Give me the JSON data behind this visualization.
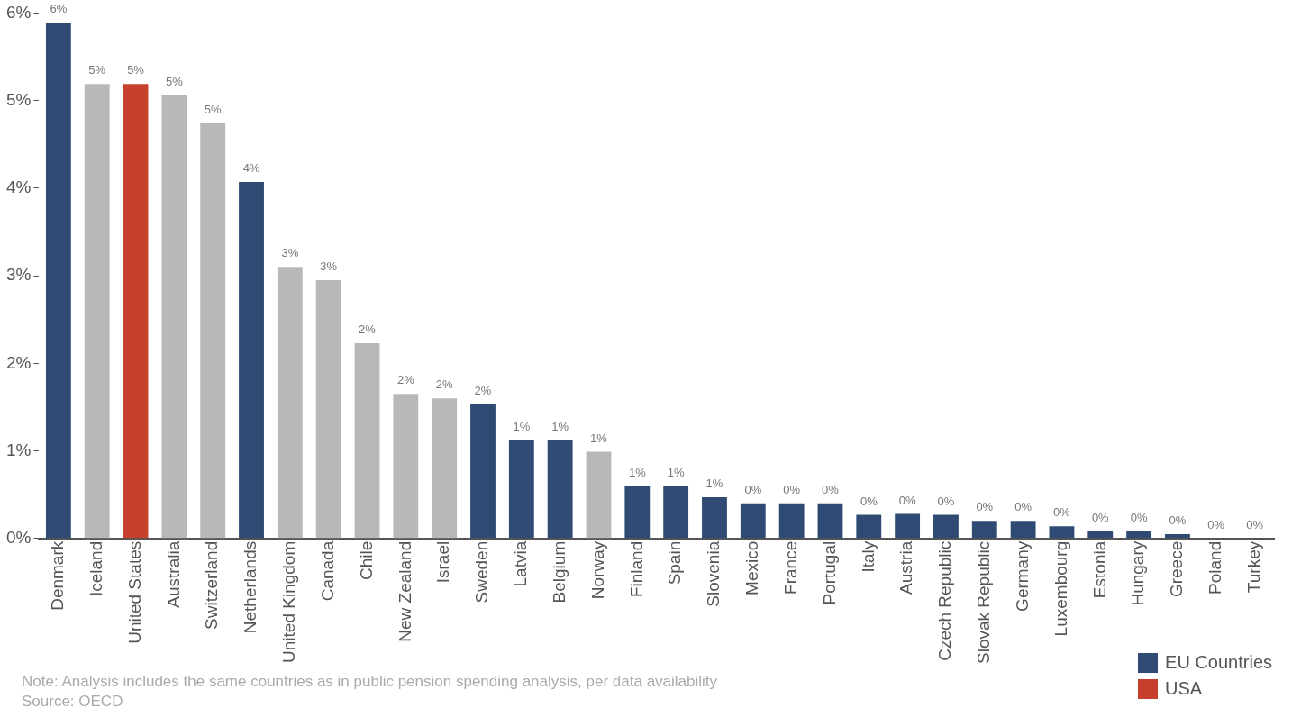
{
  "chart_data": {
    "type": "bar",
    "categories": [
      "Denmark",
      "Iceland",
      "United States",
      "Australia",
      "Switzerland",
      "Netherlands",
      "United Kingdom",
      "Canada",
      "Chile",
      "New Zealand",
      "Israel",
      "Sweden",
      "Latvia",
      "Belgium",
      "Norway",
      "Finland",
      "Spain",
      "Slovenia",
      "Mexico",
      "France",
      "Portugal",
      "Italy",
      "Austria",
      "Czech Republic",
      "Slovak Republic",
      "Germany",
      "Luxembourg",
      "Estonia",
      "Hungary",
      "Greece",
      "Poland",
      "Turkey"
    ],
    "series": [
      {
        "name": "EU Countries",
        "color": "#2f4a73",
        "values": [
          5.89,
          null,
          null,
          null,
          null,
          4.07,
          null,
          null,
          null,
          null,
          null,
          1.53,
          1.12,
          1.12,
          null,
          0.6,
          0.6,
          0.47,
          0.4,
          0.4,
          0.4,
          0.27,
          0.28,
          0.27,
          0.2,
          0.2,
          0.14,
          0.08,
          0.08,
          0.05,
          0,
          null
        ]
      },
      {
        "name": "USA",
        "color": "#c7402d",
        "values": [
          null,
          null,
          5.19,
          null,
          null,
          null,
          null,
          null,
          null,
          null,
          null,
          null,
          null,
          null,
          null,
          null,
          null,
          null,
          null,
          null,
          null,
          null,
          null,
          null,
          null,
          null,
          null,
          null,
          null,
          null,
          null,
          null
        ]
      },
      {
        "color": "#b8b8b8",
        "values": [
          null,
          5.19,
          null,
          5.06,
          4.74,
          null,
          3.1,
          2.95,
          2.23,
          1.65,
          1.6,
          null,
          null,
          null,
          0.99,
          null,
          null,
          null,
          null,
          null,
          null,
          null,
          null,
          null,
          null,
          null,
          null,
          null,
          null,
          null,
          null,
          0
        ]
      }
    ],
    "value_labels": [
      "6%",
      "5%",
      "5%",
      "5%",
      "5%",
      "4%",
      "3%",
      "3%",
      "2%",
      "2%",
      "2%",
      "2%",
      "1%",
      "1%",
      "1%",
      "1%",
      "1%",
      "1%",
      "0%",
      "0%",
      "0%",
      "0%",
      "0%",
      "0%",
      "0%",
      "0%",
      "0%",
      "0%",
      "0%",
      "0%",
      "0%",
      "0%"
    ],
    "ylim": [
      0,
      6
    ],
    "yticks": [
      {
        "value": 0,
        "label": "0%"
      },
      {
        "value": 1,
        "label": "1%"
      },
      {
        "value": 2,
        "label": "2%"
      },
      {
        "value": 3,
        "label": "3%"
      },
      {
        "value": 4,
        "label": "4%"
      },
      {
        "value": 5,
        "label": "5%"
      },
      {
        "value": 6,
        "label": "6%"
      }
    ],
    "grid": false,
    "legend": "bottom right",
    "annotations": [
      "Note: Analysis includes the same countries as in public pension spending analysis, per data availability",
      "Source: OECD"
    ]
  }
}
